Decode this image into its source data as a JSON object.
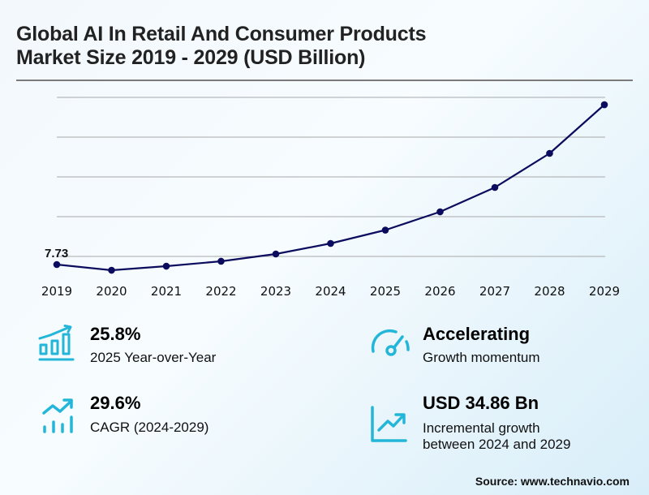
{
  "header": {
    "title_line1": "Global AI In Retail And Consumer Products",
    "title_line2": "Market Size 2019 - 2029 (USD Billion)"
  },
  "colors": {
    "line": "#0b0c5e",
    "grid": "#a8a8a8",
    "icon": "#23b6d8",
    "text": "#111111"
  },
  "chart_data": {
    "type": "line",
    "title": "Global AI In Retail And Consumer Products Market Size 2019 - 2029 (USD Billion)",
    "xlabel": "",
    "ylabel": "USD Billion",
    "categories": [
      "2019",
      "2020",
      "2021",
      "2022",
      "2023",
      "2024",
      "2025",
      "2026",
      "2027",
      "2028",
      "2029"
    ],
    "series": [
      {
        "name": "Market Size",
        "values": [
          7.73,
          6.3,
          7.32,
          8.55,
          10.38,
          13.03,
          16.39,
          20.98,
          27.1,
          35.66,
          47.89
        ]
      }
    ],
    "data_labels": [
      {
        "category": "2019",
        "text": "7.73"
      }
    ],
    "ylim": [
      -0.4,
      49.6
    ],
    "gridlines": [
      9.77,
      19.76,
      29.75,
      39.74,
      49.73
    ],
    "grid": true,
    "y_tick_labels_visible": false,
    "legend": "none"
  },
  "stats": [
    {
      "value": "25.8%",
      "label": "2025 Year-over-Year",
      "icon": "bar-growth-icon"
    },
    {
      "value": "Accelerating",
      "label": "Growth momentum",
      "icon": "speedometer-icon"
    },
    {
      "value": "29.6%",
      "label": "CAGR (2024-2029)",
      "icon": "trend-bars-icon"
    },
    {
      "value": "USD 34.86 Bn",
      "label_line1": "Incremental growth",
      "label_line2": "between 2024 and 2029",
      "icon": "line-chart-icon"
    }
  ],
  "source": "Source: www.technavio.com"
}
